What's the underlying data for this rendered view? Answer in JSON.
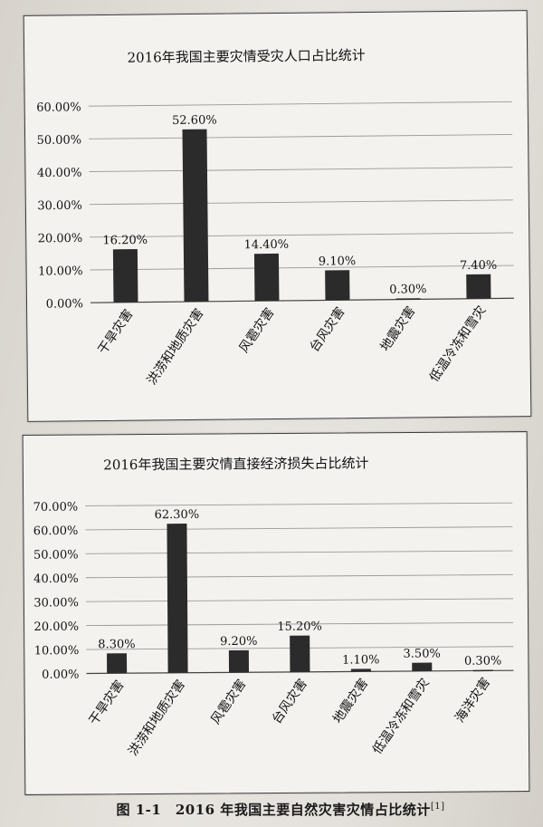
{
  "chart_data": [
    {
      "type": "bar",
      "title": "2016年我国主要灾情受灾人口占比统计",
      "categories": [
        "干旱灾害",
        "洪涝和地质灾害",
        "风雹灾害",
        "台风灾害",
        "地震灾害",
        "低温冷冻和雪灾"
      ],
      "values": [
        16.2,
        52.6,
        14.4,
        9.1,
        0.3,
        7.4
      ],
      "data_labels": [
        "16.20%",
        "52.60%",
        "14.40%",
        "9.10%",
        "0.30%",
        "7.40%"
      ],
      "ylim": [
        0,
        60
      ],
      "yticks": [
        "0.00%",
        "10.00%",
        "20.00%",
        "30.00%",
        "40.00%",
        "50.00%",
        "60.00%"
      ],
      "grid": true,
      "bar_color": "#2b2b2b"
    },
    {
      "type": "bar",
      "title": "2016年我国主要灾情直接经济损失占比统计",
      "categories": [
        "干旱灾害",
        "洪涝和地质灾害",
        "风雹灾害",
        "台风灾害",
        "地震灾害",
        "低温冷冻和雪灾",
        "海洋灾害"
      ],
      "values": [
        8.3,
        62.3,
        9.2,
        15.2,
        1.1,
        3.5,
        0.3
      ],
      "data_labels": [
        "8.30%",
        "62.30%",
        "9.20%",
        "15.20%",
        "1.10%",
        "3.50%",
        "0.30%"
      ],
      "ylim": [
        0,
        70
      ],
      "yticks": [
        "0.00%",
        "10.00%",
        "20.00%",
        "30.00%",
        "40.00%",
        "50.00%",
        "60.00%",
        "70.00%"
      ],
      "grid": true,
      "bar_color": "#2b2b2b"
    }
  ],
  "caption": {
    "text": "图 1-1　2016 年我国主要自然灾害灾情占比统计",
    "ref": "[1]"
  }
}
